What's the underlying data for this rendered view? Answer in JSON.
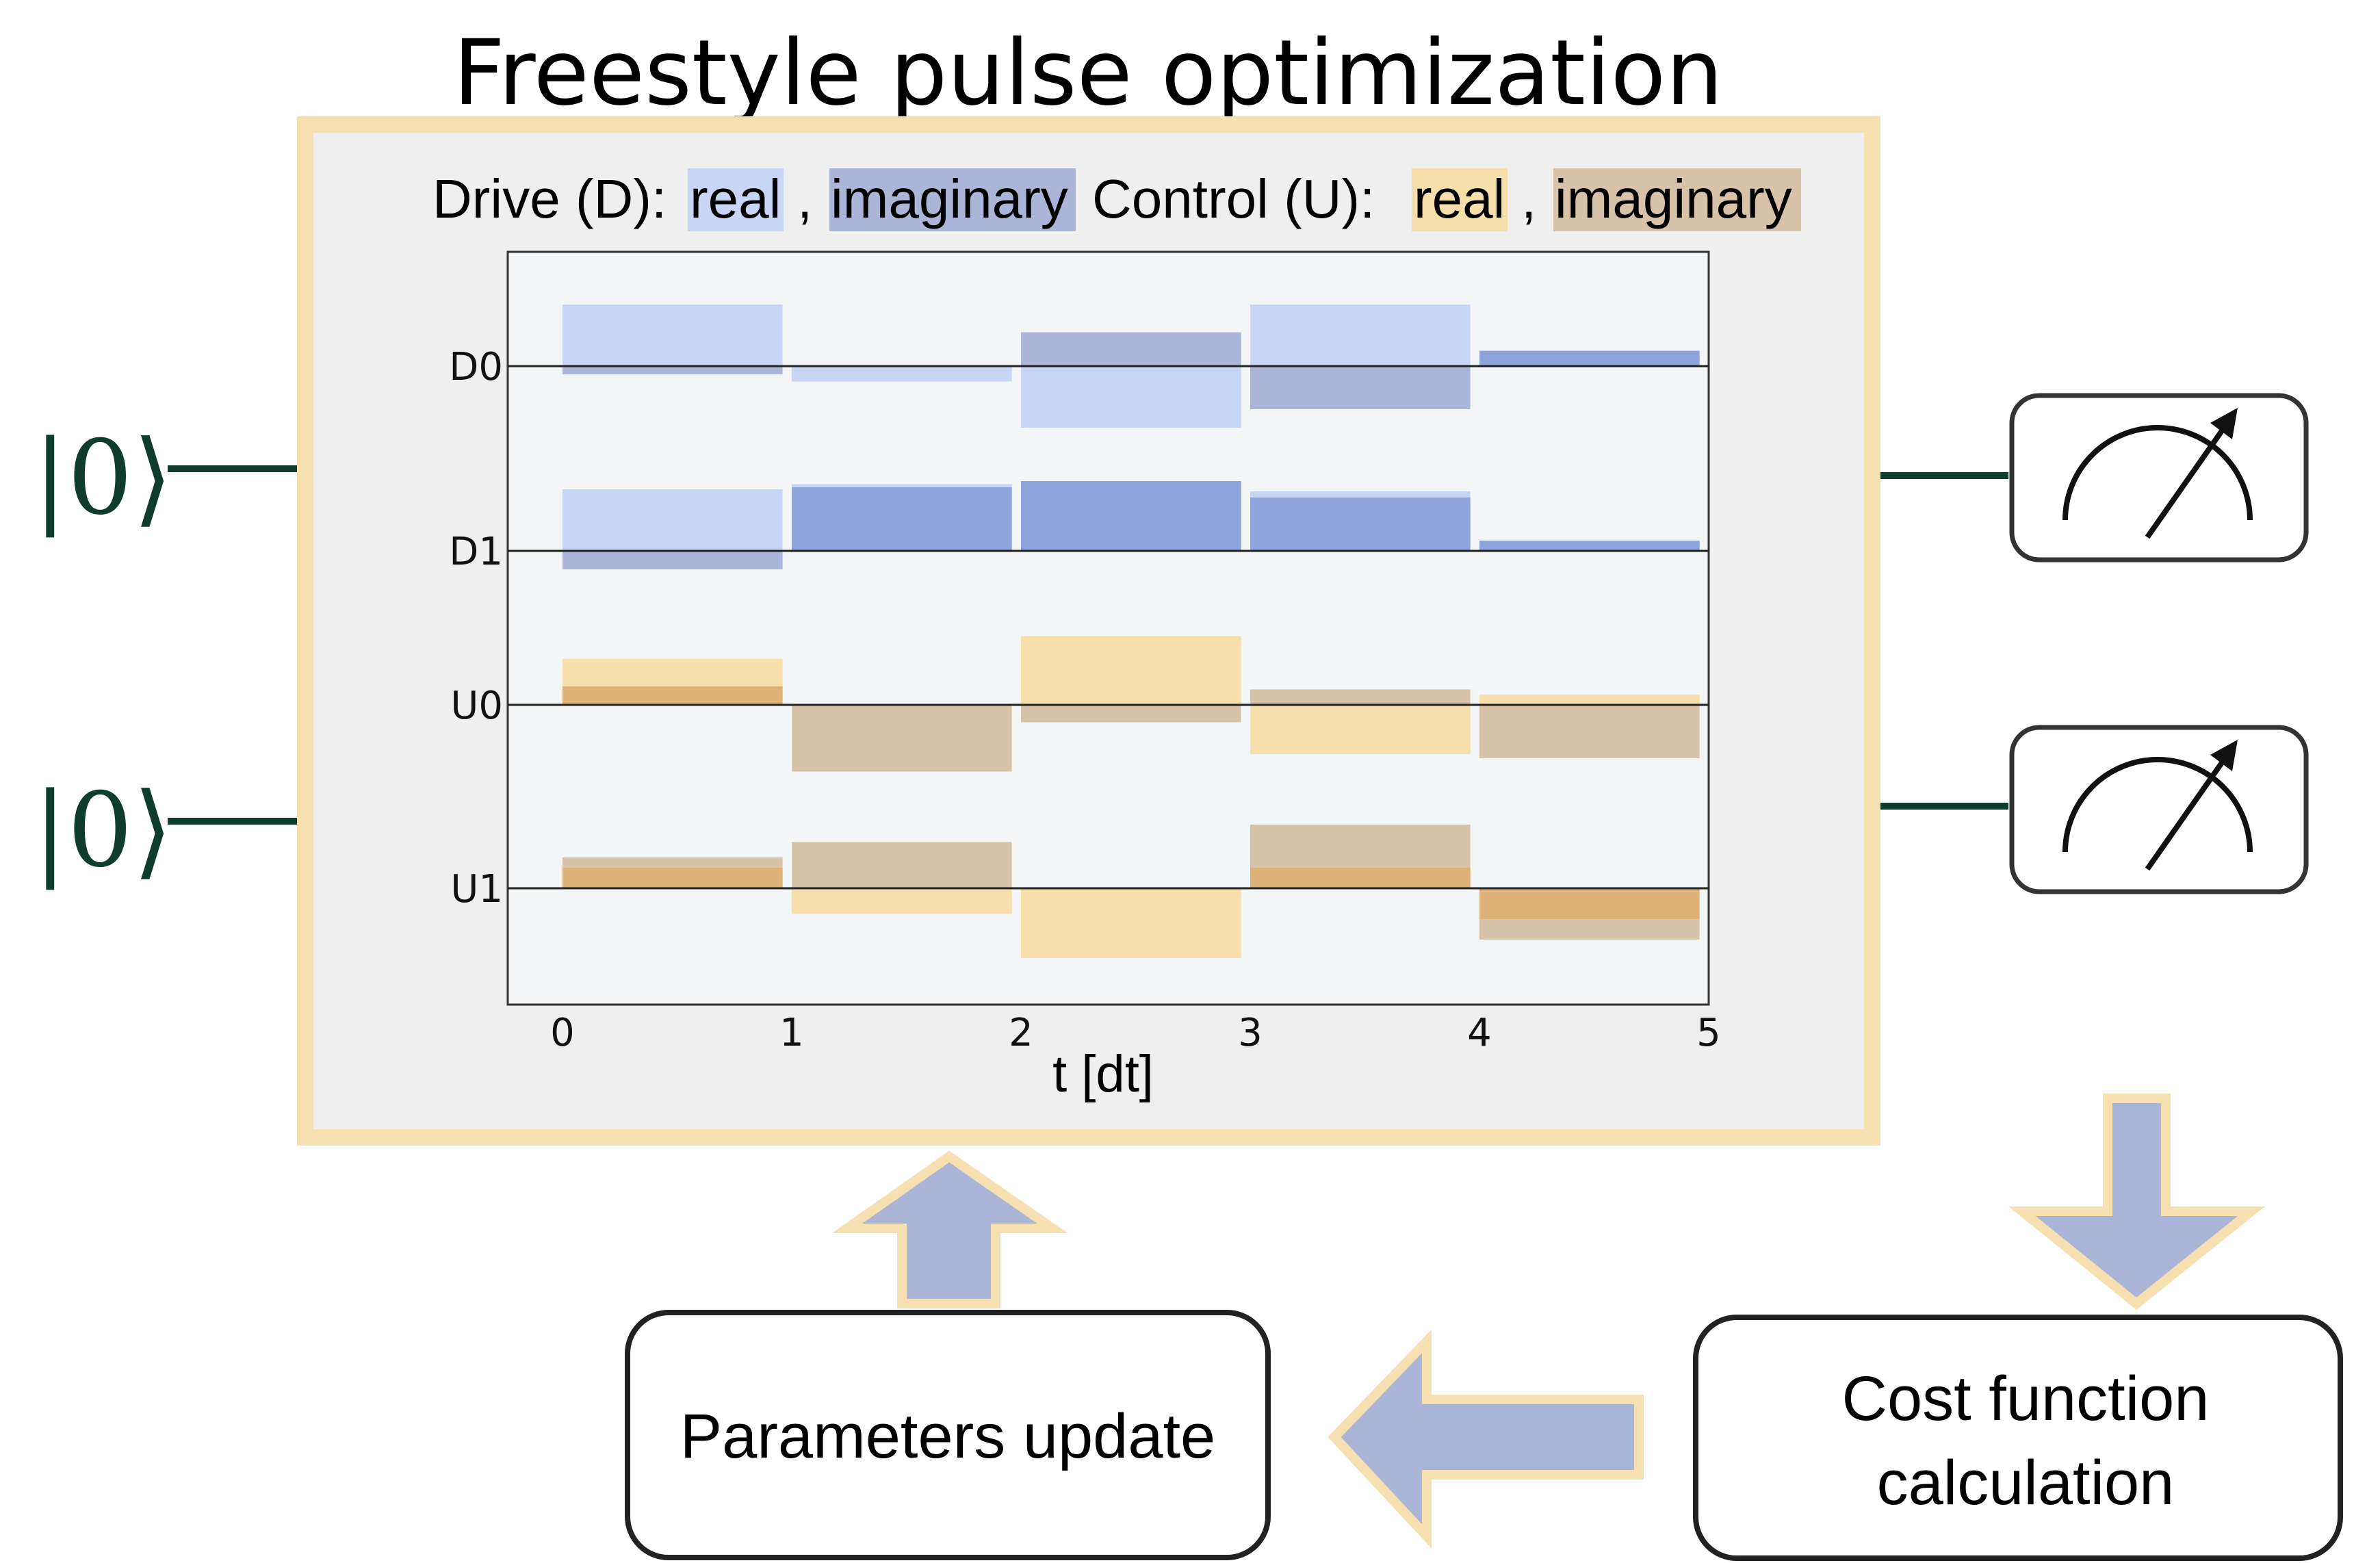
{
  "title": "Freestyle pulse optimization",
  "qubits": [
    {
      "state": "|0⟩"
    },
    {
      "state": "|0⟩"
    }
  ],
  "legend": {
    "drive_label": "Drive (D):",
    "drive_real": "real",
    "sep1": ",",
    "drive_imag": "imaginary",
    "control_label": "Control (U):",
    "control_real": "real",
    "sep2": ",",
    "control_imag": "imaginary"
  },
  "colors": {
    "drive_real": "#c8d6f5",
    "drive_imag": "#aab5d8",
    "drive_overlap": "#8fa3dc",
    "control_real": "#f6dfab",
    "control_imag": "#d9c2aa",
    "control_overlap": "#deb37a",
    "panel_border": "#f6dfb0",
    "arrow_fill": "#aab5d8",
    "arrow_border": "#f6dfb0",
    "wire": "#0f3d2c"
  },
  "chart_data": {
    "type": "step",
    "xlabel": "t [dt]",
    "xlim": [
      0,
      5
    ],
    "xticks": [
      "0",
      "1",
      "2",
      "3",
      "4",
      "5"
    ],
    "channels": [
      {
        "name": "D0",
        "kind": "drive",
        "real": [
          0.6,
          -0.15,
          -0.6,
          0.6,
          0.15
        ],
        "imag": [
          -0.08,
          0.0,
          0.33,
          -0.42,
          0.15
        ]
      },
      {
        "name": "D1",
        "kind": "drive",
        "real": [
          0.6,
          0.65,
          0.68,
          0.58,
          0.1
        ],
        "imag": [
          -0.18,
          0.62,
          0.68,
          0.52,
          0.1
        ]
      },
      {
        "name": "U0",
        "kind": "control",
        "real": [
          0.45,
          0.0,
          0.67,
          -0.48,
          0.1
        ],
        "imag": [
          0.18,
          -0.65,
          -0.17,
          0.15,
          -0.52
        ]
      },
      {
        "name": "U1",
        "kind": "control",
        "real": [
          0.2,
          -0.25,
          -0.68,
          0.2,
          -0.3
        ],
        "imag": [
          0.3,
          0.45,
          0.0,
          0.62,
          -0.5
        ]
      }
    ]
  },
  "steps": {
    "cost": [
      "Cost function",
      "calculation"
    ],
    "update": "Parameters update"
  }
}
